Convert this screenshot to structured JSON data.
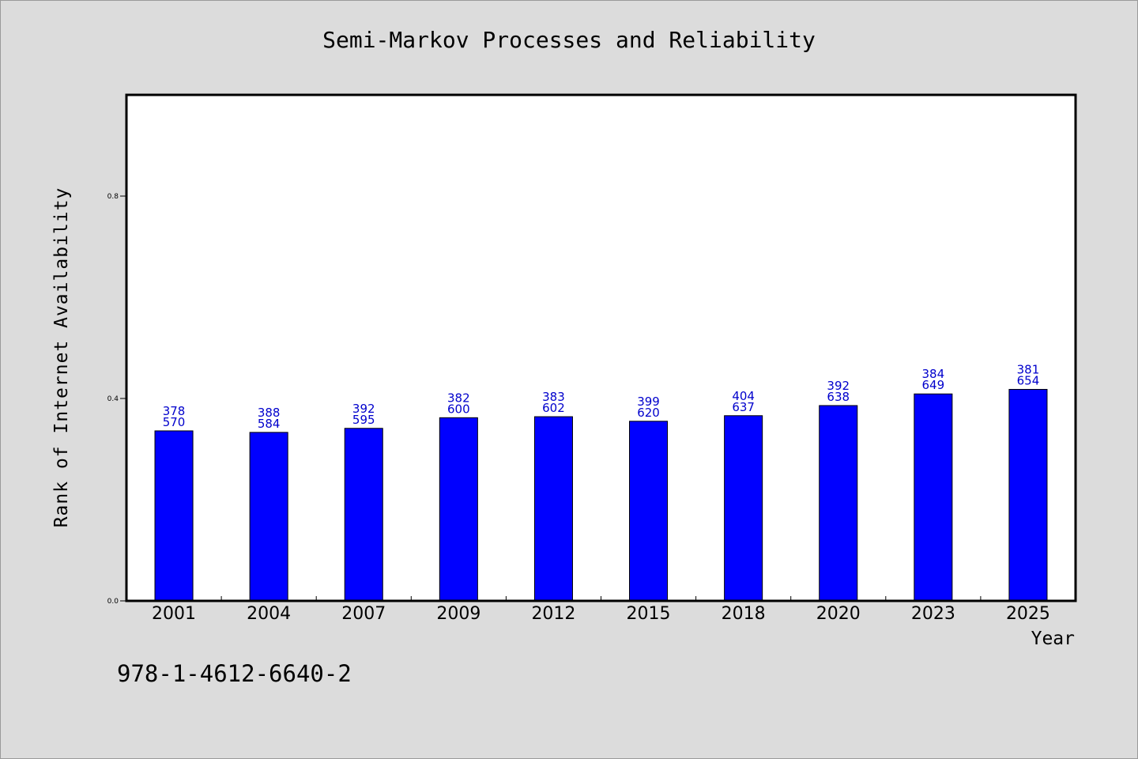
{
  "chart_data": {
    "type": "bar",
    "title": "Semi-Markov Processes and Reliability",
    "xlabel": "Year",
    "ylabel": "Rank of Internet Availability",
    "categories": [
      "2001",
      "2004",
      "2007",
      "2009",
      "2012",
      "2015",
      "2018",
      "2020",
      "2023",
      "2025"
    ],
    "values": [
      0.336,
      0.333,
      0.341,
      0.362,
      0.364,
      0.355,
      0.366,
      0.386,
      0.409,
      0.418
    ],
    "bar_labels": [
      [
        "378",
        "570"
      ],
      [
        "388",
        "584"
      ],
      [
        "392",
        "595"
      ],
      [
        "382",
        "600"
      ],
      [
        "383",
        "602"
      ],
      [
        "399",
        "620"
      ],
      [
        "404",
        "637"
      ],
      [
        "392",
        "638"
      ],
      [
        "384",
        "649"
      ],
      [
        "381",
        "654"
      ]
    ],
    "y_ticks": [
      "0.0",
      "0.4",
      "0.8"
    ],
    "ylim": [
      0,
      1.0
    ],
    "grid": false,
    "bar_color": "#0000ff",
    "label_color": "#0000cc"
  },
  "footnote": "978-1-4612-6640-2"
}
